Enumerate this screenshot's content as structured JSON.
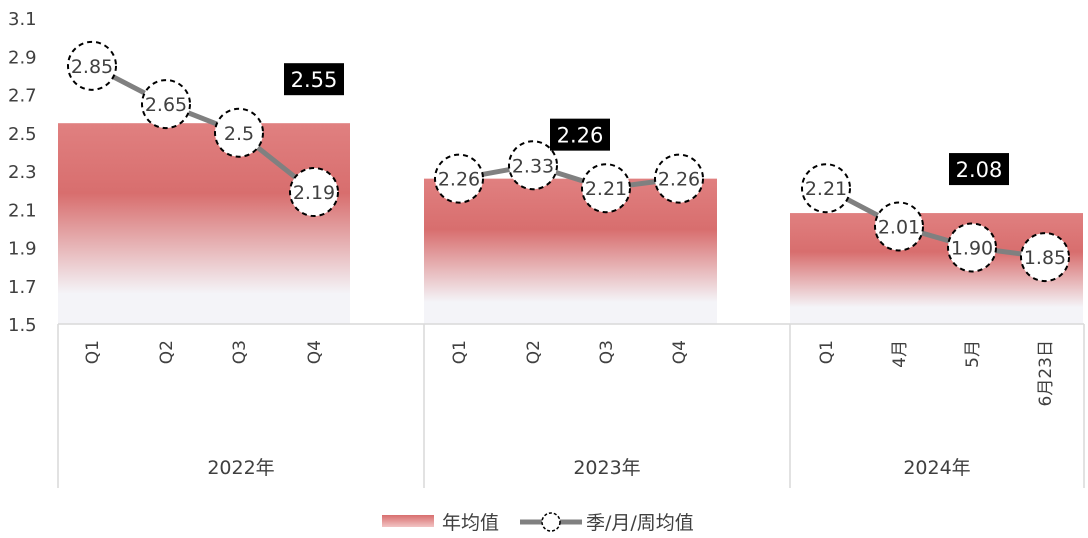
{
  "chart_data": {
    "type": "bar+line",
    "ylim": [
      1.5,
      3.1
    ],
    "yticks": [
      "1.5",
      "1.7",
      "1.9",
      "2.1",
      "2.3",
      "2.5",
      "2.7",
      "2.9",
      "3.1"
    ],
    "groups": [
      {
        "label": "2022年",
        "average": 2.55,
        "average_label": "2.55",
        "categories": [
          "Q1",
          "Q2",
          "Q3",
          "Q4"
        ],
        "values": [
          2.85,
          2.65,
          2.5,
          2.19
        ],
        "value_labels": [
          "2.85",
          "2.65",
          "2.5",
          "2.19"
        ]
      },
      {
        "label": "2023年",
        "average": 2.26,
        "average_label": "2.26",
        "categories": [
          "Q1",
          "Q2",
          "Q3",
          "Q4"
        ],
        "values": [
          2.26,
          2.33,
          2.21,
          2.26
        ],
        "value_labels": [
          "2.26",
          "2.33",
          "2.21",
          "2.26"
        ]
      },
      {
        "label": "2024年",
        "average": 2.08,
        "average_label": "2.08",
        "categories": [
          "Q1",
          "4月",
          "5月",
          "6月23日"
        ],
        "values": [
          2.21,
          2.01,
          1.9,
          1.85
        ],
        "value_labels": [
          "2.21",
          "2.01",
          "1.90",
          "1.85"
        ]
      }
    ],
    "legend": [
      {
        "name": "年均值",
        "kind": "area"
      },
      {
        "name": "季/月/周均值",
        "kind": "line"
      }
    ],
    "colors": {
      "area": "#d76b6b",
      "line": "#808080",
      "avg_box": "#000000"
    }
  }
}
